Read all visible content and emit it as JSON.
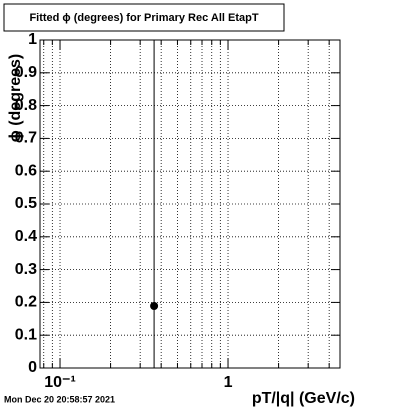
{
  "chart_data": {
    "type": "scatter",
    "title": "Fitted ϕ (degrees) for Primary Rec All EtapT",
    "x_label": "pT/|q| (GeV/c)",
    "y_label": "ϕ (degrees)",
    "footer": "Mon Dec 20 20:58:57 2021",
    "x_log": true,
    "grid": true,
    "color": "#000000",
    "x": [
      0.363
    ],
    "values": [
      0.189
    ],
    "yerr": [
      1.0
    ],
    "xlim": [
      0.076,
      4.64
    ],
    "ylim": [
      0,
      1
    ],
    "xticks": [
      {
        "value": 0.1,
        "label": "10⁻¹"
      },
      1
    ],
    "xminor": [
      0.08,
      0.09,
      0.2,
      0.3,
      0.4,
      0.5,
      0.6,
      0.7,
      0.8,
      0.9,
      2,
      3,
      4
    ],
    "yticks": [
      0,
      0.1,
      0.2,
      0.3,
      0.4,
      0.5,
      0.6,
      0.7,
      0.8,
      0.9,
      1
    ]
  }
}
